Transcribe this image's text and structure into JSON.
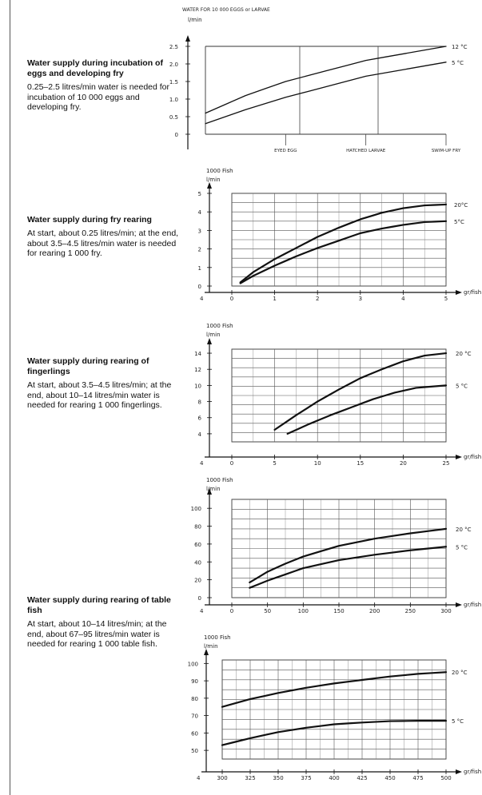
{
  "text_blocks": [
    {
      "heading": "Water supply during incubation of eggs and developing fry",
      "body": "0.25–2.5 litres/min water is needed for incubation of 10 000 eggs and developing fry."
    },
    {
      "heading": "Water supply during fry rearing",
      "body": "At start, about 0.25 litres/min; at the end, about 3.5–4.5 litres/min water is needed for rearing 1 000 fry."
    },
    {
      "heading": "Water supply during rearing of fingerlings",
      "body": "At start, about 3.5–4.5 litres/min; at the end, about 10–14 litres/min water is needed for rearing 1 000 fingerlings."
    },
    {
      "heading": "Water supply during rearing of table fish",
      "body": "At start, about 10–14 litres/min; at the end, about 67–95 litres/min water is needed for rearing 1 000 table fish."
    }
  ],
  "chart_data": [
    {
      "type": "line",
      "ylabel_lines": [
        "WATER FOR 10 000 EGGS or LARVAE",
        "l/min"
      ],
      "xlabel": "",
      "x_tick_labels": [
        "EYED EGG",
        "HATCHED LARVAE",
        "SWIM-UP FRY"
      ],
      "x_tick_positions": [
        1,
        2,
        3
      ],
      "y_tick_labels": [
        "0",
        "0.5",
        "1.0",
        "1.5",
        "2.0",
        "2.5"
      ],
      "xlim": [
        0,
        3
      ],
      "ylim": [
        0,
        2.5
      ],
      "series": [
        {
          "name": "12 °C",
          "x": [
            0,
            0.5,
            1,
            1.5,
            2,
            2.5,
            3
          ],
          "values": [
            0.6,
            1.1,
            1.5,
            1.8,
            2.1,
            2.3,
            2.5
          ]
        },
        {
          "name": "5 °C",
          "x": [
            0,
            0.5,
            1,
            1.5,
            2,
            2.5,
            3
          ],
          "values": [
            0.3,
            0.7,
            1.05,
            1.35,
            1.65,
            1.85,
            2.05
          ]
        }
      ]
    },
    {
      "type": "line",
      "ylabel_lines": [
        "1000 Fish",
        "l/min"
      ],
      "xlabel": "gr/fish",
      "corner_label": "4",
      "x_ticks": [
        0,
        1,
        2,
        3,
        4,
        5
      ],
      "x_tick_labels": [
        "0",
        "1",
        "2",
        "3",
        "4",
        "5"
      ],
      "y_ticks": [
        0,
        1,
        2,
        3,
        4,
        5
      ],
      "y_tick_labels": [
        "0",
        "1",
        "2",
        "3",
        "4",
        "5"
      ],
      "xlim": [
        0,
        5
      ],
      "ylim": [
        0,
        5
      ],
      "series": [
        {
          "name": "20°C",
          "x": [
            0.2,
            0.5,
            1,
            1.5,
            2,
            2.5,
            3,
            3.5,
            4,
            4.5,
            5
          ],
          "values": [
            0.2,
            0.75,
            1.45,
            2.05,
            2.65,
            3.15,
            3.6,
            3.95,
            4.2,
            4.35,
            4.4
          ]
        },
        {
          "name": "5°C",
          "x": [
            0.2,
            0.5,
            1,
            1.5,
            2,
            2.5,
            3,
            3.5,
            4,
            4.5,
            5
          ],
          "values": [
            0.15,
            0.55,
            1.1,
            1.6,
            2.05,
            2.45,
            2.85,
            3.1,
            3.3,
            3.45,
            3.5
          ]
        }
      ]
    },
    {
      "type": "line",
      "ylabel_lines": [
        "1000 Fish",
        "l/min"
      ],
      "xlabel": "gr/fish",
      "corner_label": "4",
      "x_ticks": [
        0,
        5,
        10,
        15,
        20,
        25
      ],
      "x_tick_labels": [
        "0",
        "5",
        "10",
        "15",
        "20",
        "25"
      ],
      "y_ticks": [
        4,
        6,
        8,
        10,
        12,
        14
      ],
      "y_tick_labels": [
        "4",
        "6",
        "8",
        "10",
        "12",
        "14"
      ],
      "xlim": [
        0,
        25
      ],
      "ylim": [
        3,
        14.5
      ],
      "series": [
        {
          "name": "20 °C",
          "x": [
            5,
            7.5,
            10,
            12.5,
            15,
            17.5,
            20,
            22.5,
            25
          ],
          "values": [
            4.5,
            6.3,
            8,
            9.5,
            10.9,
            12,
            13,
            13.7,
            14
          ]
        },
        {
          "name": "5 °C",
          "x": [
            6.5,
            9,
            11.5,
            14,
            16.5,
            19,
            21.5,
            25
          ],
          "values": [
            4,
            5.2,
            6.3,
            7.3,
            8.3,
            9.1,
            9.7,
            10
          ]
        }
      ]
    },
    {
      "type": "line",
      "ylabel_lines": [
        "1000 Fish",
        "l/min"
      ],
      "xlabel": "gr/fish",
      "corner_label": "4",
      "x_ticks": [
        0,
        50,
        100,
        150,
        200,
        250,
        300
      ],
      "x_tick_labels": [
        "0",
        "50",
        "100",
        "150",
        "200",
        "250",
        "300"
      ],
      "y_ticks": [
        0,
        20,
        40,
        60,
        80,
        100
      ],
      "y_tick_labels": [
        "0",
        "20",
        "40",
        "60",
        "80",
        "100"
      ],
      "xlim": [
        0,
        300
      ],
      "ylim": [
        0,
        110
      ],
      "series": [
        {
          "name": "20 °C",
          "x": [
            25,
            50,
            75,
            100,
            150,
            200,
            250,
            300
          ],
          "values": [
            17,
            29,
            38,
            46,
            58,
            66,
            72,
            77
          ]
        },
        {
          "name": "5 °C",
          "x": [
            25,
            50,
            75,
            100,
            150,
            200,
            250,
            300
          ],
          "values": [
            11,
            19,
            26,
            33,
            42,
            48,
            53,
            57
          ]
        }
      ]
    },
    {
      "type": "line",
      "ylabel_lines": [
        "1000 Fish",
        "l/min"
      ],
      "xlabel": "gr/fish",
      "corner_label": "4",
      "x_ticks": [
        300,
        325,
        350,
        375,
        400,
        425,
        450,
        475,
        500
      ],
      "x_tick_labels": [
        "300",
        "325",
        "350",
        "375",
        "400",
        "425",
        "450",
        "475",
        "500"
      ],
      "y_ticks": [
        50,
        60,
        70,
        80,
        90,
        100
      ],
      "y_tick_labels": [
        "50",
        "60",
        "70",
        "80",
        "90",
        "100"
      ],
      "xlim": [
        300,
        500
      ],
      "ylim": [
        45,
        102
      ],
      "series": [
        {
          "name": "20 °C",
          "x": [
            300,
            325,
            350,
            375,
            400,
            425,
            450,
            475,
            500
          ],
          "values": [
            75,
            79.5,
            83,
            86,
            88.5,
            90.5,
            92.5,
            94,
            95
          ]
        },
        {
          "name": "5 °C",
          "x": [
            300,
            325,
            350,
            375,
            400,
            425,
            450,
            475,
            500
          ],
          "values": [
            53,
            57,
            60.5,
            63,
            65,
            66,
            66.8,
            67,
            67
          ]
        }
      ]
    }
  ]
}
